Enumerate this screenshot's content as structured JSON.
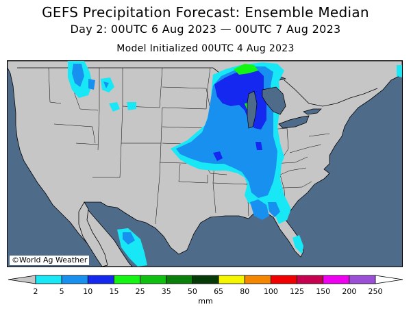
{
  "title": "GEFS Precipitation Forecast: Ensemble Median",
  "subtitle": "Day 2: 00UTC 6 Aug 2023 — 00UTC 7 Aug 2023",
  "init": "Model Initialized 00UTC 4 Aug 2023",
  "credit": "©World Ag Weather",
  "colors": {
    "ocean": "#4f6b8a",
    "land": "#c6c6c6",
    "border": "#000000"
  },
  "colorbar": {
    "units": "mm",
    "under_color": "#c6c6c6",
    "over_color": "#9b4fd6",
    "bins": [
      {
        "from": "2",
        "to": "5",
        "color": "#18e8f5"
      },
      {
        "from": "5",
        "to": "10",
        "color": "#1890f0"
      },
      {
        "from": "10",
        "to": "15",
        "color": "#1428f0"
      },
      {
        "from": "15",
        "to": "25",
        "color": "#14f514"
      },
      {
        "from": "25",
        "to": "35",
        "color": "#10c010"
      },
      {
        "from": "35",
        "to": "50",
        "color": "#0a800a"
      },
      {
        "from": "50",
        "to": "65",
        "color": "#063a06"
      },
      {
        "from": "65",
        "to": "80",
        "color": "#f5f500"
      },
      {
        "from": "80",
        "to": "100",
        "color": "#f58700"
      },
      {
        "from": "100",
        "to": "125",
        "color": "#f00000"
      },
      {
        "from": "125",
        "to": "150",
        "color": "#c80050"
      },
      {
        "from": "150",
        "to": "200",
        "color": "#f000f0"
      },
      {
        "from": "200",
        "to": "250",
        "color": "#9b4fd6"
      }
    ],
    "ticks": [
      "2",
      "5",
      "10",
      "15",
      "25",
      "35",
      "50",
      "65",
      "80",
      "100",
      "125",
      "150",
      "200",
      "250"
    ]
  }
}
